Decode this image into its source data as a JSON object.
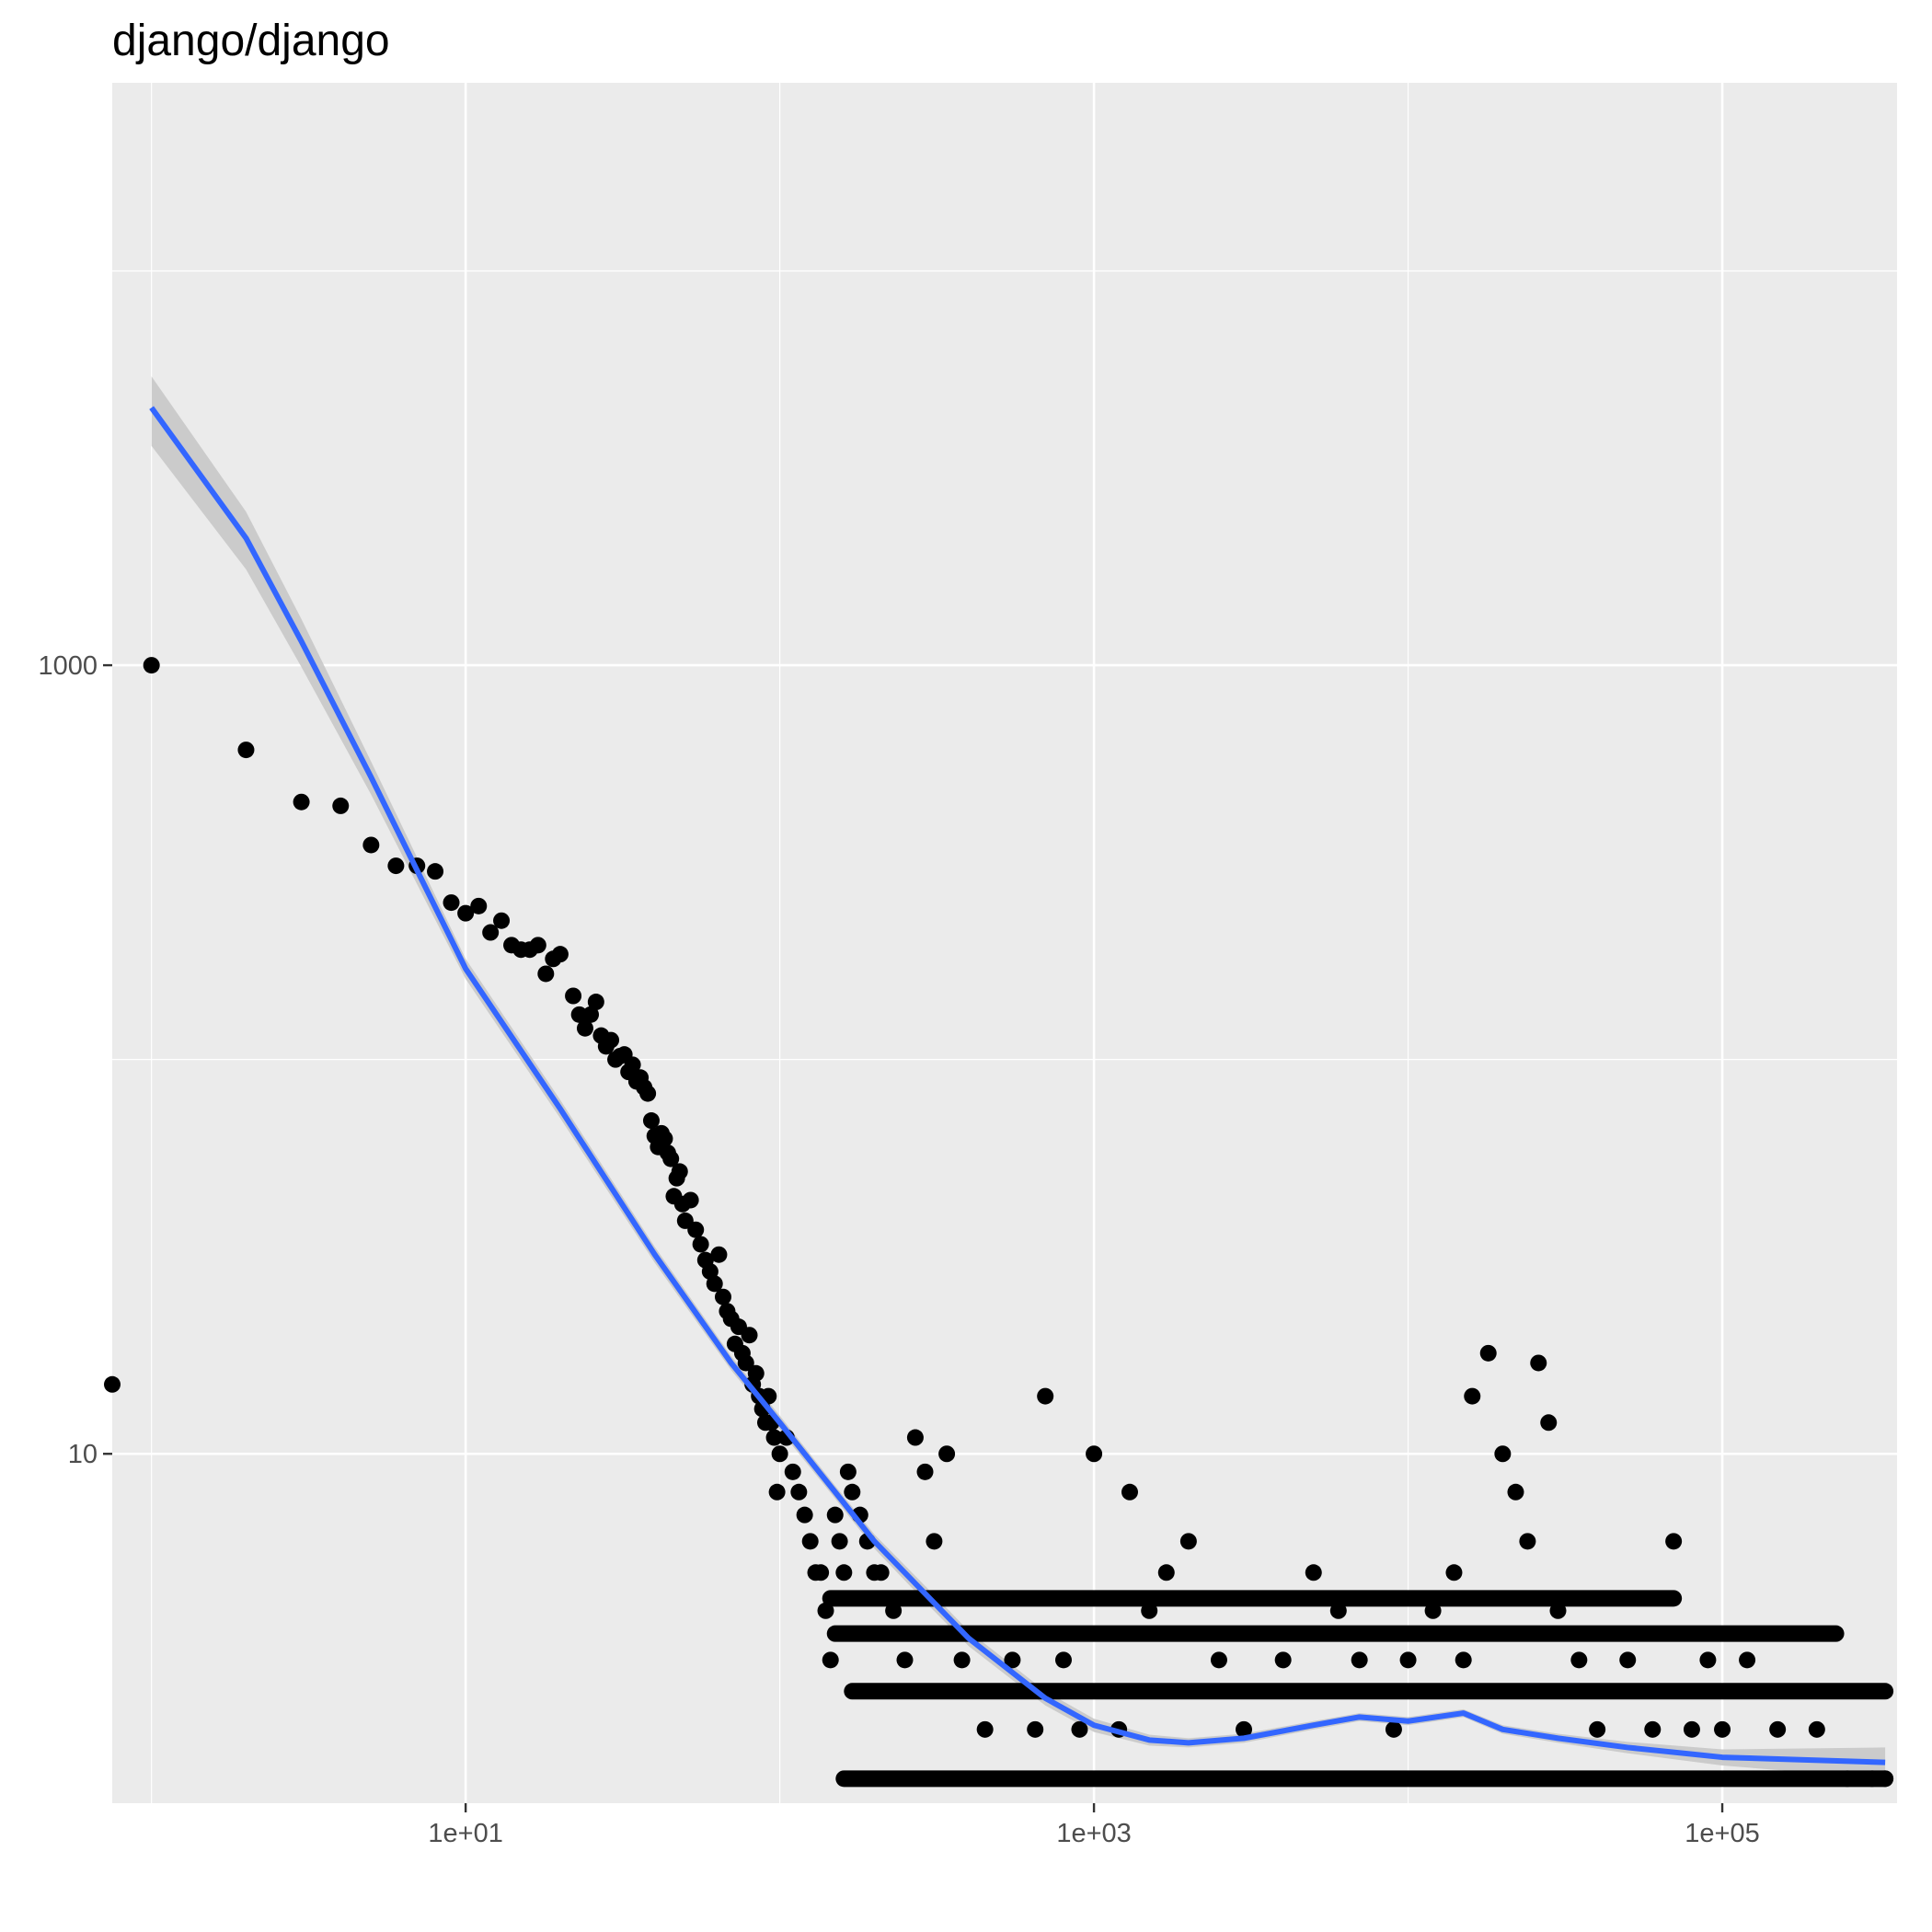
{
  "chart_data": {
    "type": "scatter",
    "title": "django/django",
    "xlabel": "",
    "ylabel": "",
    "x_scale": "log10",
    "y_scale": "log10",
    "xlim": [
      0.75,
      360000
    ],
    "ylim": [
      1.3,
      30000
    ],
    "x_ticks": [
      {
        "value": 10,
        "label": "1e+01"
      },
      {
        "value": 1000,
        "label": "1e+03"
      },
      {
        "value": 100000,
        "label": "1e+05"
      }
    ],
    "y_ticks": [
      {
        "value": 10,
        "label": "10"
      },
      {
        "value": 1000,
        "label": "1000"
      }
    ],
    "grid": true,
    "legend": "none",
    "colors": {
      "panel": "#ebebeb",
      "grid": "#ffffff",
      "points": "#000000",
      "smooth_line": "#3366ff",
      "smooth_band": "#c8c8c8"
    },
    "points": [
      [
        0.75,
        15
      ],
      [
        1,
        1000
      ],
      [
        2,
        610
      ],
      [
        3,
        450
      ],
      [
        4,
        440
      ],
      [
        5,
        350
      ],
      [
        6,
        310
      ],
      [
        7,
        310
      ],
      [
        8,
        300
      ],
      [
        9,
        250
      ],
      [
        10,
        235
      ],
      [
        11,
        245
      ],
      [
        12,
        210
      ],
      [
        13,
        225
      ],
      [
        14,
        195
      ],
      [
        15,
        190
      ],
      [
        16,
        190
      ],
      [
        17,
        195
      ],
      [
        18,
        165
      ],
      [
        19,
        180
      ],
      [
        20,
        185
      ],
      [
        22,
        145
      ],
      [
        23,
        130
      ],
      [
        24,
        120
      ],
      [
        25,
        130
      ],
      [
        26,
        140
      ],
      [
        27,
        115
      ],
      [
        28,
        108
      ],
      [
        29,
        112
      ],
      [
        30,
        100
      ],
      [
        31,
        102
      ],
      [
        32,
        103
      ],
      [
        33,
        93
      ],
      [
        34,
        97
      ],
      [
        35,
        88
      ],
      [
        36,
        90
      ],
      [
        37,
        85
      ],
      [
        38,
        82
      ],
      [
        39,
        70
      ],
      [
        40,
        64
      ],
      [
        41,
        60
      ],
      [
        42,
        65
      ],
      [
        43,
        63
      ],
      [
        44,
        58
      ],
      [
        45,
        56
      ],
      [
        46,
        45
      ],
      [
        47,
        50
      ],
      [
        48,
        52
      ],
      [
        49,
        43
      ],
      [
        50,
        39
      ],
      [
        52,
        44
      ],
      [
        54,
        37
      ],
      [
        56,
        34
      ],
      [
        58,
        31
      ],
      [
        60,
        29
      ],
      [
        62,
        27
      ],
      [
        64,
        32
      ],
      [
        66,
        25
      ],
      [
        68,
        23
      ],
      [
        70,
        22
      ],
      [
        72,
        19
      ],
      [
        74,
        21
      ],
      [
        76,
        18
      ],
      [
        78,
        17
      ],
      [
        80,
        20
      ],
      [
        82,
        15
      ],
      [
        84,
        16
      ],
      [
        86,
        14
      ],
      [
        88,
        13
      ],
      [
        90,
        12
      ],
      [
        92,
        14
      ],
      [
        94,
        12
      ],
      [
        96,
        11
      ],
      [
        98,
        8
      ],
      [
        100,
        10
      ],
      [
        105,
        11
      ],
      [
        110,
        9
      ],
      [
        115,
        8
      ],
      [
        120,
        7
      ],
      [
        125,
        6
      ],
      [
        130,
        5
      ],
      [
        135,
        5
      ],
      [
        140,
        4
      ],
      [
        145,
        3
      ],
      [
        150,
        7
      ],
      [
        155,
        6
      ],
      [
        160,
        5
      ],
      [
        165,
        9
      ],
      [
        170,
        8
      ],
      [
        180,
        7
      ],
      [
        190,
        6
      ],
      [
        200,
        5
      ],
      [
        210,
        5
      ],
      [
        230,
        4
      ],
      [
        250,
        3
      ],
      [
        270,
        11
      ],
      [
        290,
        9
      ],
      [
        310,
        6
      ],
      [
        340,
        10
      ],
      [
        380,
        3
      ],
      [
        450,
        2
      ],
      [
        550,
        3
      ],
      [
        650,
        2
      ],
      [
        700,
        14
      ],
      [
        800,
        3
      ],
      [
        900,
        2
      ],
      [
        1000,
        10
      ],
      [
        1200,
        2
      ],
      [
        1300,
        8
      ],
      [
        1500,
        4
      ],
      [
        1700,
        5
      ],
      [
        2000,
        6
      ],
      [
        2500,
        3
      ],
      [
        3000,
        2
      ],
      [
        4000,
        3
      ],
      [
        5000,
        5
      ],
      [
        6000,
        4
      ],
      [
        7000,
        3
      ],
      [
        9000,
        2
      ],
      [
        10000,
        3
      ],
      [
        12000,
        4
      ],
      [
        14000,
        5
      ],
      [
        15000,
        3
      ],
      [
        16000,
        14
      ],
      [
        18000,
        18
      ],
      [
        20000,
        10
      ],
      [
        22000,
        8
      ],
      [
        24000,
        6
      ],
      [
        26000,
        17
      ],
      [
        28000,
        12
      ],
      [
        30000,
        4
      ],
      [
        35000,
        3
      ],
      [
        40000,
        2
      ],
      [
        50000,
        3
      ],
      [
        60000,
        2
      ],
      [
        70000,
        6
      ],
      [
        80000,
        2
      ],
      [
        90000,
        3
      ],
      [
        100000,
        2
      ],
      [
        120000,
        3
      ],
      [
        150000,
        2
      ],
      [
        200000,
        2
      ],
      [
        250000,
        1.5
      ],
      [
        300000,
        1.5
      ],
      [
        330000,
        1.5
      ]
    ],
    "dense_rows": [
      {
        "y": 1.5,
        "x_range": [
          160,
          330000
        ]
      },
      {
        "y": 2.5,
        "x_range": [
          170,
          330000
        ]
      },
      {
        "y": 3.5,
        "x_range": [
          150,
          230000
        ]
      },
      {
        "y": 4.3,
        "x_range": [
          145,
          70000
        ]
      }
    ],
    "smooth": {
      "x": [
        1,
        2,
        3,
        5,
        10,
        20,
        40,
        70,
        100,
        150,
        200,
        300,
        400,
        700,
        1000,
        1500,
        2000,
        3000,
        5000,
        7000,
        10000,
        15000,
        20000,
        30000,
        50000,
        100000,
        330000
      ],
      "y": [
        4500,
        2100,
        1150,
        520,
        170,
        75,
        32,
        17,
        12,
        8,
        6,
        4.3,
        3.4,
        2.4,
        2.05,
        1.88,
        1.85,
        1.9,
        2.05,
        2.15,
        2.1,
        2.2,
        2.0,
        1.9,
        1.8,
        1.7,
        1.65
      ],
      "band_halfwidth": [
        900,
        350,
        160,
        50,
        10,
        4,
        1.5,
        0.7,
        0.5,
        0.3,
        0.25,
        0.2,
        0.15,
        0.1,
        0.08,
        0.06,
        0.05,
        0.05,
        0.05,
        0.05,
        0.05,
        0.05,
        0.05,
        0.05,
        0.06,
        0.08,
        0.15
      ]
    }
  }
}
